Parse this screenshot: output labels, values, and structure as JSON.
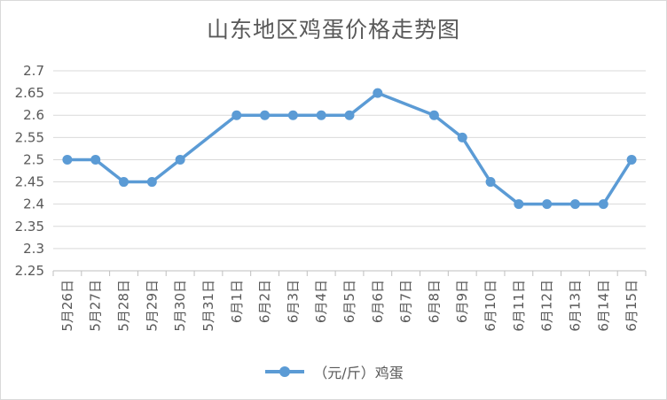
{
  "chart_data": {
    "type": "line",
    "title": "山东地区鸡蛋价格走势图",
    "x": [
      "5月26日",
      "5月27日",
      "5月28日",
      "5月29日",
      "5月30日",
      "5月31日",
      "6月1日",
      "6月2日",
      "6月3日",
      "6月4日",
      "6月5日",
      "6月6日",
      "6月7日",
      "6月8日",
      "6月9日",
      "6月10日",
      "6月11日",
      "6月12日",
      "6月13日",
      "6月14日",
      "6月15日"
    ],
    "series": [
      {
        "name": "（元/斤）鸡蛋",
        "values": [
          2.5,
          2.5,
          2.45,
          2.45,
          2.5,
          null,
          2.6,
          2.6,
          2.6,
          2.6,
          2.6,
          2.65,
          null,
          2.6,
          2.55,
          2.45,
          2.4,
          2.4,
          2.4,
          2.4,
          2.5
        ],
        "color": "#5b9bd5"
      }
    ],
    "ylim": [
      2.25,
      2.7
    ],
    "yticks": [
      "2.25",
      "2.3",
      "2.35",
      "2.4",
      "2.45",
      "2.5",
      "2.55",
      "2.6",
      "2.65",
      "2.7"
    ],
    "grid": true,
    "legend": "bottom"
  }
}
